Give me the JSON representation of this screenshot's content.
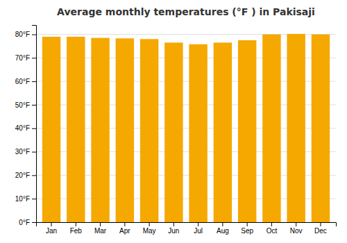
{
  "chart_data": {
    "type": "bar",
    "title": "Average monthly temperatures (°F ) in Pakisaji",
    "categories": [
      "Jan",
      "Feb",
      "Mar",
      "Apr",
      "May",
      "Jun",
      "Jul",
      "Aug",
      "Sep",
      "Oct",
      "Nov",
      "Dec"
    ],
    "values": [
      79.0,
      79.0,
      78.5,
      78.3,
      78.0,
      76.5,
      75.8,
      76.5,
      77.5,
      80.0,
      80.2,
      80.0
    ],
    "color": "#F5A800",
    "ylim": [
      0,
      84
    ],
    "yticks": [
      {
        "value": 0,
        "label": "0°F"
      },
      {
        "value": 10,
        "label": "10°F"
      },
      {
        "value": 20,
        "label": "20°F"
      },
      {
        "value": 30,
        "label": "30°F"
      },
      {
        "value": 40,
        "label": "40°F"
      },
      {
        "value": 50,
        "label": "50°F"
      },
      {
        "value": 60,
        "label": "60°F"
      },
      {
        "value": 70,
        "label": "70°F"
      },
      {
        "value": 80,
        "label": "80°F"
      }
    ],
    "grid": true
  }
}
